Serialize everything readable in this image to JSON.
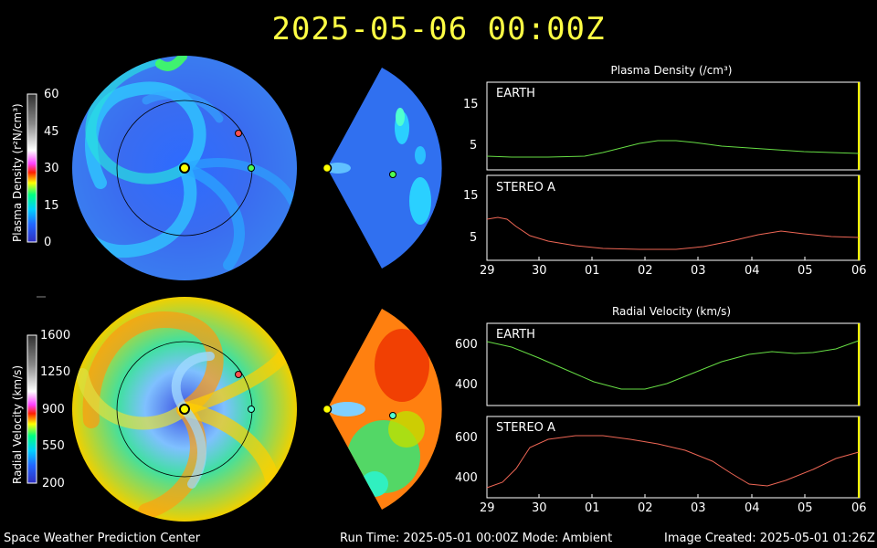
{
  "header": {
    "timestamp": "2025-05-06  00:00Z"
  },
  "colorbars": {
    "density": {
      "label": "Plasma Density (r²N/cm³)",
      "ticks": [
        "60",
        "45",
        "30",
        "15",
        "0"
      ]
    },
    "velocity": {
      "label": "Radial Velocity (km/s)",
      "ticks": [
        "1600",
        "1250",
        "900",
        "550",
        "200"
      ]
    }
  },
  "density_panel": {
    "title": "Plasma Density (/cm³)",
    "earth_label": "EARTH",
    "stereo_label": "STEREO A",
    "earth_ticks": [
      "15",
      "5"
    ],
    "stereo_ticks": [
      "15",
      "5"
    ]
  },
  "velocity_panel": {
    "title": "Radial Velocity (km/s)",
    "earth_label": "EARTH",
    "stereo_label": "STEREO A",
    "earth_ticks": [
      "600",
      "400"
    ],
    "stereo_ticks": [
      "600",
      "400"
    ]
  },
  "x_ticks": [
    "29",
    "30",
    "01",
    "02",
    "03",
    "04",
    "05",
    "06"
  ],
  "footer": {
    "center_left": "Space Weather Prediction Center",
    "run": "Run Time: 2025-05-01 00:00Z  Mode: Ambient",
    "created": "Image Created: 2025-05-01 01:26Z"
  },
  "colors": {
    "earth_line": "#66dd44",
    "stereo_line": "#ee6655",
    "title": "#ffff44",
    "sun": "#ffff00"
  }
}
